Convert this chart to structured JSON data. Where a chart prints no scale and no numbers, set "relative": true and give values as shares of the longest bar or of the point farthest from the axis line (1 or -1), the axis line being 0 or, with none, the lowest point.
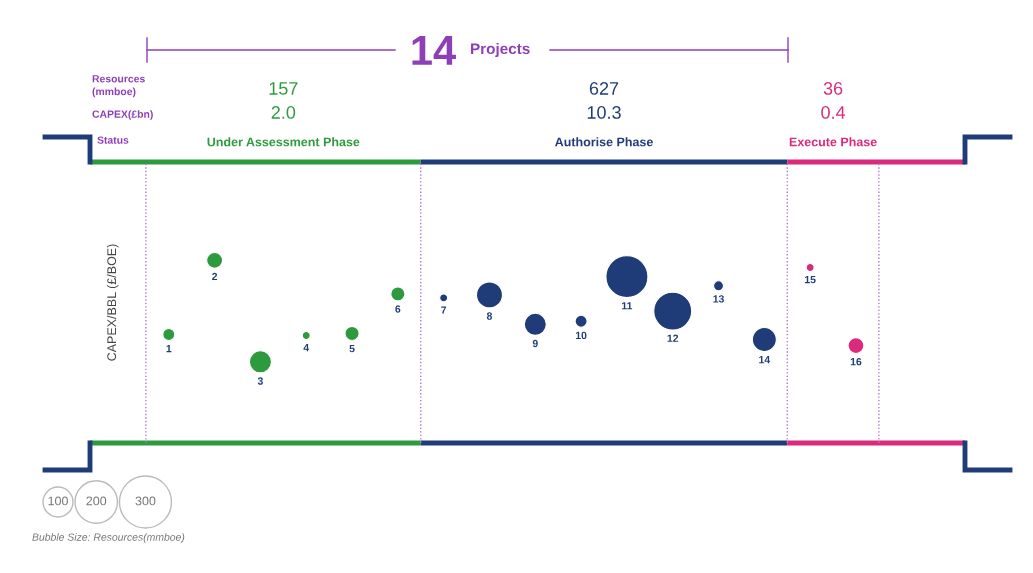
{
  "chart_data": {
    "type": "bubble",
    "relative": true,
    "ylabel": "CAPEX/BBL (£/BOE)",
    "categories": [
      "1",
      "2",
      "3",
      "4",
      "5",
      "6",
      "7",
      "8",
      "9",
      "10",
      "11",
      "12",
      "13",
      "14",
      "15",
      "16"
    ],
    "series": [
      {
        "name": "Under Assessment Phase",
        "color": "#2e9a3e",
        "values": [
          0.27,
          1,
          0,
          0.26,
          0.28,
          0.67,
          null,
          null,
          null,
          null,
          null,
          null,
          null,
          null,
          null,
          null
        ],
        "sizes": [
          16,
          28,
          54,
          7,
          22,
          22,
          null,
          null,
          null,
          null,
          null,
          null,
          null,
          null,
          null,
          null
        ]
      },
      {
        "name": "Authorise Phase",
        "color": "#1f3c78",
        "values": [
          null,
          null,
          null,
          null,
          null,
          null,
          0.63,
          0.66,
          0.37,
          0.4,
          0.84,
          0.5,
          0.75,
          0.22,
          null,
          null
        ],
        "sizes": [
          null,
          null,
          null,
          null,
          null,
          null,
          7,
          75,
          54,
          16,
          196,
          160,
          11,
          64,
          null,
          null
        ]
      },
      {
        "name": "Execute Phase",
        "color": "#d92a7c",
        "values": [
          null,
          null,
          null,
          null,
          null,
          null,
          null,
          null,
          null,
          null,
          null,
          null,
          null,
          null,
          0.93,
          0.16
        ],
        "sizes": [
          null,
          null,
          null,
          null,
          null,
          null,
          null,
          null,
          null,
          null,
          null,
          null,
          null,
          null,
          7,
          28
        ]
      }
    ],
    "size_legend": [
      100,
      200,
      300
    ],
    "annotations": [
      "14",
      "Projects",
      "Resources\n(mmboe)",
      "CAPEX(£bn)",
      "Status",
      "157",
      "2.0",
      "627",
      "10.3",
      "36",
      "0.4",
      "Bubble Size: Resources(mmboe)"
    ],
    "legend": false
  }
}
